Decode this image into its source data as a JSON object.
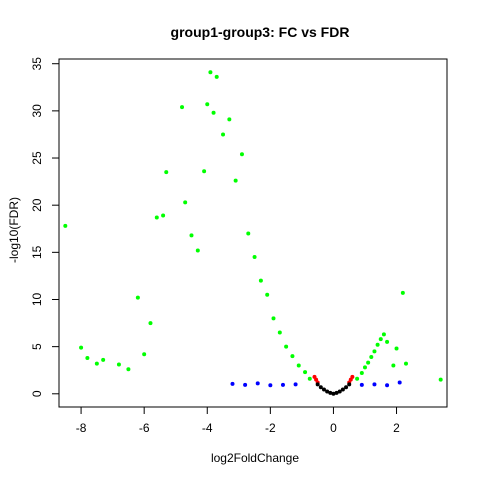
{
  "chart_data": {
    "type": "scatter",
    "title": "group1-group3: FC vs FDR",
    "xlabel": "log2FoldChange",
    "ylabel": "-log10(FDR)",
    "xlim": [
      -8.7,
      3.6
    ],
    "ylim": [
      -1.4,
      35.5
    ],
    "xticks": [
      -8,
      -6,
      -4,
      -2,
      0,
      2
    ],
    "yticks": [
      0,
      5,
      10,
      15,
      20,
      25,
      30,
      35
    ],
    "grid": false,
    "legend": "none",
    "colors": {
      "green": "#00ff00",
      "red": "#ff0000",
      "blue": "#0000ff",
      "black": "#000000"
    },
    "series": [
      {
        "color": "green",
        "points": [
          [
            -8.5,
            17.8
          ],
          [
            -8.0,
            4.9
          ],
          [
            -7.8,
            3.8
          ],
          [
            -7.5,
            3.2
          ],
          [
            -7.3,
            3.6
          ],
          [
            -6.8,
            3.1
          ],
          [
            -6.5,
            2.6
          ],
          [
            -6.2,
            10.2
          ],
          [
            -6.0,
            4.2
          ],
          [
            -5.8,
            7.5
          ],
          [
            -5.6,
            18.7
          ],
          [
            -5.4,
            18.9
          ],
          [
            -5.3,
            23.5
          ],
          [
            -4.8,
            30.4
          ],
          [
            -4.7,
            20.3
          ],
          [
            -4.5,
            16.8
          ],
          [
            -4.3,
            15.2
          ],
          [
            -4.1,
            23.6
          ],
          [
            -4.0,
            30.7
          ],
          [
            -3.9,
            34.1
          ],
          [
            -3.8,
            29.8
          ],
          [
            -3.7,
            33.6
          ],
          [
            -3.5,
            27.5
          ],
          [
            -3.3,
            29.1
          ],
          [
            -3.1,
            22.6
          ],
          [
            -2.9,
            25.4
          ],
          [
            -2.7,
            17.0
          ],
          [
            -2.5,
            14.5
          ],
          [
            -2.3,
            12.0
          ],
          [
            -2.1,
            10.5
          ],
          [
            -1.9,
            8.0
          ],
          [
            -1.7,
            6.5
          ],
          [
            -1.5,
            5.0
          ],
          [
            -1.3,
            4.0
          ],
          [
            -1.1,
            3.0
          ],
          [
            -0.9,
            2.3
          ],
          [
            -0.75,
            1.6
          ],
          [
            0.75,
            1.6
          ],
          [
            0.9,
            2.2
          ],
          [
            1.0,
            2.8
          ],
          [
            1.1,
            3.3
          ],
          [
            1.2,
            3.9
          ],
          [
            1.3,
            4.5
          ],
          [
            1.4,
            5.2
          ],
          [
            1.5,
            5.8
          ],
          [
            1.6,
            6.3
          ],
          [
            1.7,
            5.5
          ],
          [
            1.9,
            3.0
          ],
          [
            2.0,
            4.8
          ],
          [
            2.2,
            10.7
          ],
          [
            2.3,
            3.2
          ],
          [
            3.4,
            1.5
          ]
        ]
      },
      {
        "color": "red",
        "points": [
          [
            -0.6,
            1.8
          ],
          [
            -0.55,
            1.5
          ],
          [
            -0.5,
            1.2
          ],
          [
            0.5,
            1.2
          ],
          [
            0.55,
            1.5
          ],
          [
            0.6,
            1.8
          ]
        ]
      },
      {
        "color": "blue",
        "points": [
          [
            -3.2,
            1.05
          ],
          [
            -2.8,
            0.95
          ],
          [
            -2.4,
            1.1
          ],
          [
            -2.0,
            0.9
          ],
          [
            -1.6,
            0.95
          ],
          [
            -1.2,
            1.0
          ],
          [
            0.9,
            0.95
          ],
          [
            1.3,
            1.0
          ],
          [
            1.7,
            0.9
          ],
          [
            2.1,
            1.2
          ]
        ]
      },
      {
        "color": "black",
        "points": [
          [
            -0.5,
            1.0
          ],
          [
            -0.4,
            0.7
          ],
          [
            -0.3,
            0.45
          ],
          [
            -0.2,
            0.25
          ],
          [
            -0.1,
            0.1
          ],
          [
            0.0,
            0.0
          ],
          [
            0.1,
            0.1
          ],
          [
            0.2,
            0.25
          ],
          [
            0.3,
            0.45
          ],
          [
            0.4,
            0.7
          ],
          [
            0.5,
            1.0
          ]
        ]
      }
    ]
  }
}
